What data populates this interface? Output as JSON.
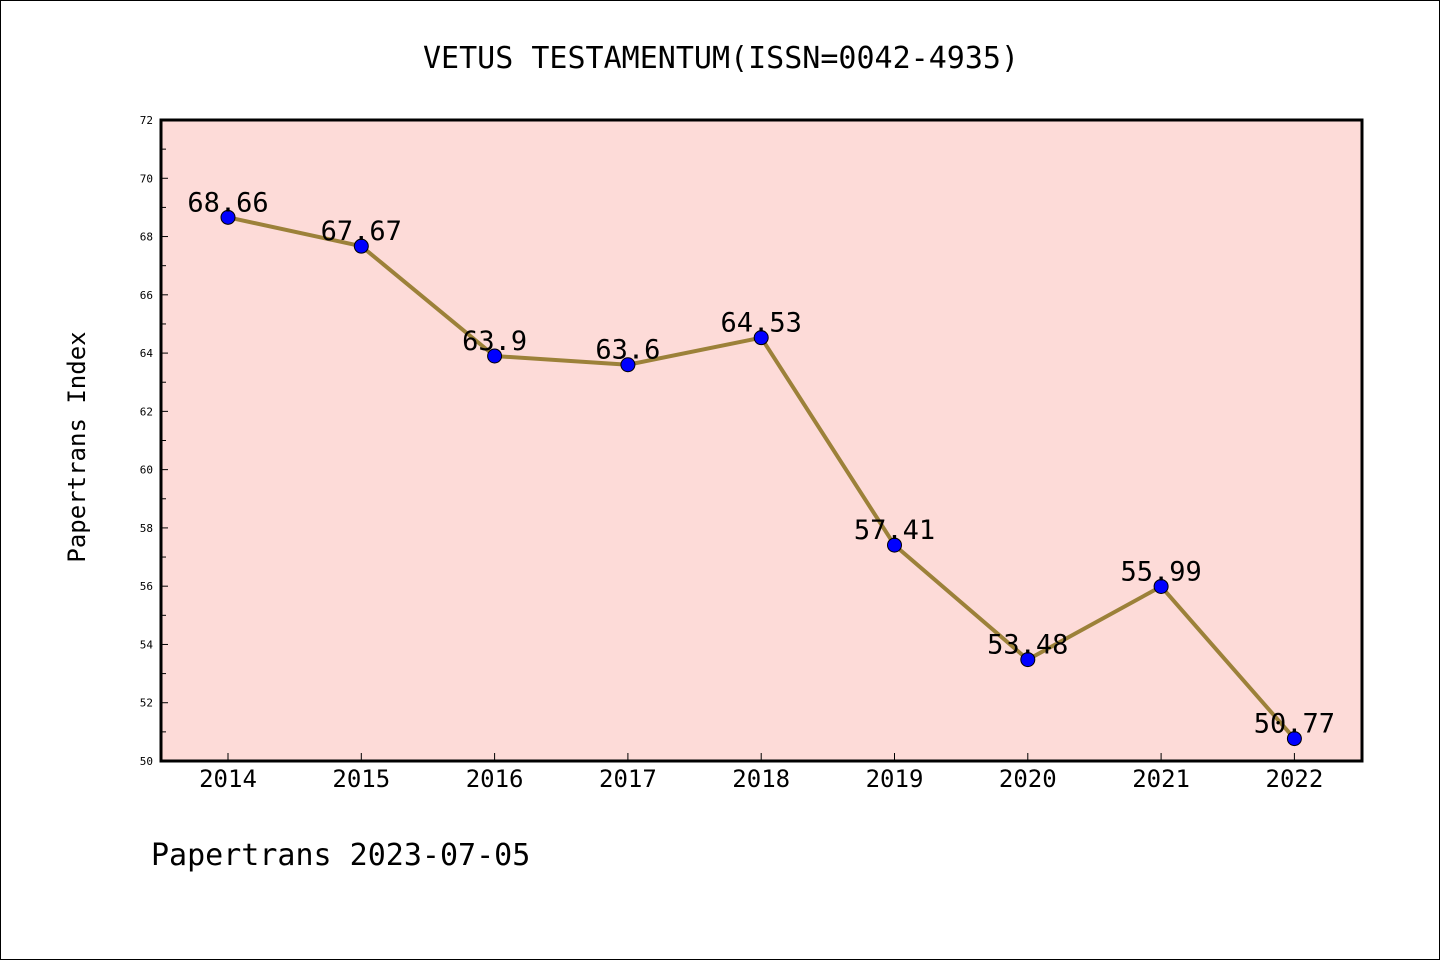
{
  "chart_data": {
    "type": "line",
    "title": "VETUS TESTAMENTUM(ISSN=0042-4935)",
    "xlabel": "",
    "ylabel": "Papertrans Index",
    "categories": [
      "2014",
      "2015",
      "2016",
      "2017",
      "2018",
      "2019",
      "2020",
      "2021",
      "2022"
    ],
    "series": [
      {
        "values": [
          68.66,
          67.67,
          63.9,
          63.6,
          64.53,
          57.41,
          53.48,
          55.99,
          50.77
        ],
        "labels": [
          "68.66",
          "67.67",
          "63.9",
          "63.6",
          "64.53",
          "57.41",
          "53.48",
          "55.99",
          "50.77"
        ]
      }
    ],
    "ylim": [
      50,
      72
    ],
    "yticks": [
      "50",
      "52",
      "54",
      "56",
      "58",
      "60",
      "62",
      "64",
      "66",
      "68",
      "70",
      "72"
    ],
    "grid": false,
    "colors": {
      "plot_background": "#fddbd8",
      "line": "#9c8139",
      "marker": "#0000ff"
    }
  },
  "footer": "Papertrans 2023-07-05"
}
